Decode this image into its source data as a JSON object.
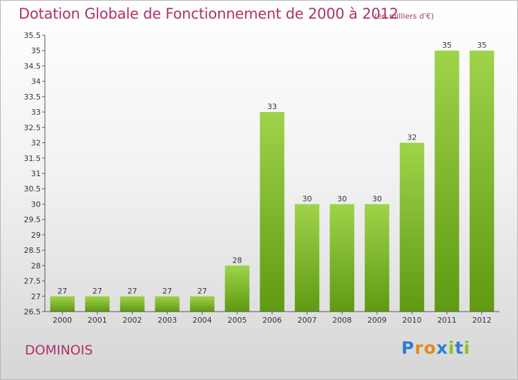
{
  "title": "Dotation Globale de Fonctionnement de 2000 à 2012",
  "unit": "(en milliers d'€)",
  "commune": "DOMINOIS",
  "logo": {
    "text": "Proxiti",
    "letter_colors": [
      "#2c7fd1",
      "#e08a1e",
      "#e08a1e",
      "#2c7fd1",
      "#8dc21f",
      "#2c7fd1",
      "#8dc21f"
    ]
  },
  "colors": {
    "title": "#b0306a",
    "bar_light": "#9fd34a",
    "bar_dark": "#5e9a12",
    "axis": "#555555",
    "grid": "#dddddd"
  },
  "chart_data": {
    "type": "bar",
    "title": "Dotation Globale de Fonctionnement de 2000 à 2012",
    "xlabel": "",
    "ylabel": "",
    "ylim": [
      26.5,
      35.5
    ],
    "y_step": 0.5,
    "grid": false,
    "categories": [
      "2000",
      "2001",
      "2002",
      "2003",
      "2004",
      "2005",
      "2006",
      "2007",
      "2008",
      "2009",
      "2010",
      "2011",
      "2012"
    ],
    "values": [
      27,
      27,
      27,
      27,
      27,
      28,
      33,
      30,
      30,
      30,
      32,
      35,
      35
    ]
  }
}
